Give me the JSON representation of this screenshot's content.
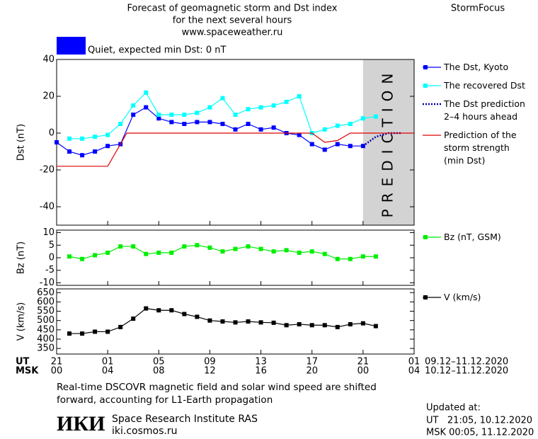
{
  "header": {
    "title_lines": [
      "Forecast of geomagnetic storm and Dst index",
      "for the next several hours",
      "www.spaceweather.ru"
    ],
    "brand": "StormFocus"
  },
  "status": {
    "text": "Quiet, expected min Dst: 0 nT",
    "color": "#0000ff"
  },
  "chart_data": [
    {
      "type": "line",
      "ylabel": "Dst (nT)",
      "xlim": [
        0,
        28
      ],
      "ylim": [
        -50,
        40
      ],
      "yticks": [
        40,
        20,
        0,
        -20,
        -40
      ],
      "prediction": {
        "label": "PREDICTION",
        "xlim": [
          24,
          28
        ],
        "color": "#d3d3d3"
      },
      "series": [
        {
          "name": "The Dst, Kyoto",
          "color": "#0000ff",
          "style": "square",
          "x": [
            0,
            1,
            2,
            3,
            4,
            5,
            6,
            7,
            8,
            9,
            10,
            11,
            12,
            13,
            14,
            15,
            16,
            17,
            18,
            19,
            20,
            21,
            22,
            23,
            24
          ],
          "values": [
            -5,
            -10,
            -12,
            -10,
            -7,
            -6,
            10,
            14,
            8,
            6,
            5,
            6,
            6,
            5,
            2,
            5,
            2,
            3,
            0,
            -1,
            -6,
            -9,
            -6,
            -7,
            -7
          ]
        },
        {
          "name": "The recovered Dst",
          "color": "#00ffff",
          "style": "square",
          "x": [
            1,
            2,
            3,
            4,
            5,
            6,
            7,
            8,
            9,
            10,
            11,
            12,
            13,
            14,
            15,
            16,
            17,
            18,
            19,
            20,
            21,
            22,
            23,
            24,
            25
          ],
          "values": [
            -3,
            -3,
            -2,
            -1,
            5,
            15,
            22,
            10,
            10,
            10,
            11,
            14,
            19,
            10,
            13,
            14,
            15,
            17,
            20,
            0,
            2,
            4,
            5,
            8,
            9
          ]
        },
        {
          "name": "The Dst prediction\n2–4 hours ahead",
          "color": "#0000aa",
          "style": "dotted",
          "x": [
            24,
            25,
            26,
            27
          ],
          "values": [
            -7,
            -2,
            0,
            0
          ]
        },
        {
          "name": "Prediction of the\nstorm strength\n(min Dst)",
          "color": "#dd0000",
          "style": "plain",
          "x": [
            0,
            4,
            5.5,
            20,
            21,
            22,
            23,
            28
          ],
          "values": [
            -18,
            -18,
            0,
            0,
            -5,
            -4,
            0,
            0
          ]
        }
      ]
    },
    {
      "type": "line",
      "ylabel": "Bz (nT)",
      "xlim": [
        0,
        28
      ],
      "ylim": [
        -11,
        11
      ],
      "yticks": [
        10,
        5,
        0,
        -5,
        -10
      ],
      "series": [
        {
          "name": "Bz (nT, GSM)",
          "color": "#00ee00",
          "style": "square",
          "x": [
            1,
            2,
            3,
            4,
            5,
            6,
            7,
            8,
            9,
            10,
            11,
            12,
            13,
            14,
            15,
            16,
            17,
            18,
            19,
            20,
            21,
            22,
            23,
            24,
            25
          ],
          "values": [
            0.5,
            -0.5,
            1,
            2,
            4.5,
            4.5,
            1.5,
            2,
            2,
            4.5,
            5,
            4,
            2.5,
            3.5,
            4.5,
            3.5,
            2.5,
            3,
            2,
            2.5,
            1.5,
            -0.5,
            -0.5,
            0.5,
            0.5
          ]
        }
      ]
    },
    {
      "type": "line",
      "ylabel": "V (km/s)",
      "xlim": [
        0,
        28
      ],
      "ylim": [
        320,
        670
      ],
      "yticks": [
        650,
        600,
        550,
        500,
        450,
        400,
        350
      ],
      "xticks": [
        {
          "value": 0,
          "label": "21"
        },
        {
          "value": 4,
          "label": "01"
        },
        {
          "value": 8,
          "label": "05"
        },
        {
          "value": 12,
          "label": "09"
        },
        {
          "value": 16,
          "label": "13"
        },
        {
          "value": 20,
          "label": "17"
        },
        {
          "value": 24,
          "label": "21"
        },
        {
          "value": 28,
          "label": "01"
        }
      ],
      "series": [
        {
          "name": "V (km/s)",
          "color": "#000000",
          "style": "square",
          "x": [
            1,
            2,
            3,
            4,
            5,
            6,
            7,
            8,
            9,
            10,
            11,
            12,
            13,
            14,
            15,
            16,
            17,
            18,
            19,
            20,
            21,
            22,
            23,
            24,
            25
          ],
          "values": [
            430,
            430,
            440,
            440,
            465,
            510,
            565,
            555,
            555,
            535,
            520,
            500,
            495,
            490,
            495,
            490,
            488,
            475,
            480,
            475,
            475,
            465,
            480,
            485,
            470
          ]
        }
      ]
    }
  ],
  "x_rows": {
    "ut": {
      "name": "UT",
      "range": "09.12–11.12.2020"
    },
    "msk": {
      "name": "MSK",
      "labels": [
        "00",
        "04",
        "08",
        "12",
        "16",
        "20",
        "00",
        "04"
      ],
      "range": "10.12–11.12.2020"
    }
  },
  "note": "Real-time DSCOVR magnetic field and solar wind speed are shifted\nforward, accounting for L1-Earth propagation",
  "footer": {
    "logo": "ИКИ",
    "institute": "Space Research Institute RAS",
    "site": "iki.cosmos.ru",
    "updated": [
      "Updated at:",
      "UT   21:05, 10.12.2020",
      "MSK 00:05, 11.12.2020"
    ]
  }
}
